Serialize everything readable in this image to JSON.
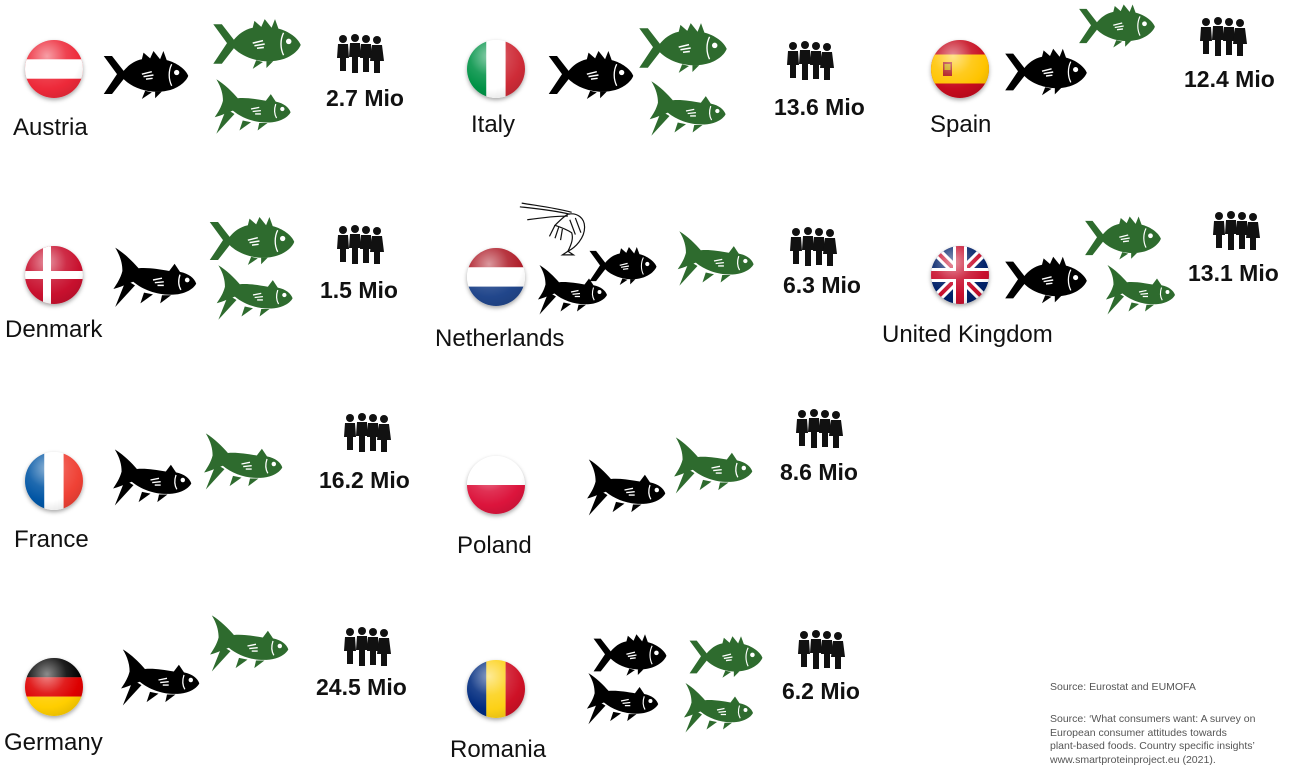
{
  "colors": {
    "farmed": "#2e6b2e",
    "wild": "#000000"
  },
  "icons": {
    "flag": "flag-icon",
    "fish": "fish-icon",
    "salmon": "salmon-icon",
    "shrimp": "shrimp-icon",
    "people": "people-icon"
  },
  "countries": [
    {
      "name": "Austria",
      "pop": "2.7 Mio"
    },
    {
      "name": "Italy",
      "pop": "13.6 Mio"
    },
    {
      "name": "Spain",
      "pop": "12.4 Mio"
    },
    {
      "name": "Denmark",
      "pop": "1.5 Mio"
    },
    {
      "name": "Netherlands",
      "pop": "6.3 Mio"
    },
    {
      "name": "United Kingdom",
      "pop": "13.1 Mio"
    },
    {
      "name": "France",
      "pop": "16.2 Mio"
    },
    {
      "name": "Poland",
      "pop": "8.6 Mio"
    },
    {
      "name": "Germany",
      "pop": "24.5 Mio"
    },
    {
      "name": "Romania",
      "pop": "6.2 Mio"
    }
  ],
  "sources": {
    "source1": "Source: Eurostat and EUMOFA",
    "source2_lines": [
      "Source: ‘What consumers want: A survey on",
      "European consumer attitudes towards",
      "plant-based foods. Country specific insights’",
      "www.smartproteinproject.eu (2021)."
    ]
  }
}
